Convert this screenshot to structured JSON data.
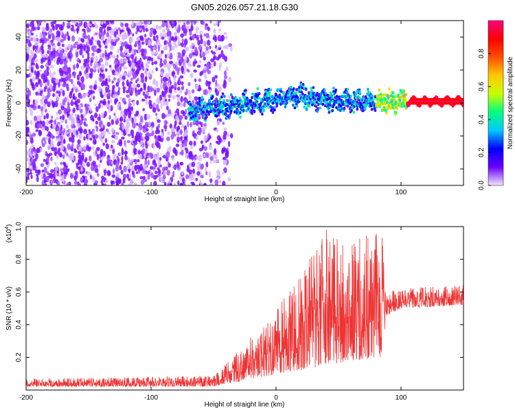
{
  "page_title": "GN05.2026.057.21.18.G30",
  "chart_data": [
    {
      "type": "heatmap",
      "title": "GN05.2026.057.21.18.G30",
      "xlabel": "Height of straight line (km)",
      "ylabel": "Frequency (Hz)",
      "xlim": [
        -200,
        150
      ],
      "ylim": [
        -50,
        50
      ],
      "xticks": [
        -200,
        -100,
        0,
        100
      ],
      "yticks": [
        -40,
        -20,
        0,
        20,
        40
      ],
      "colorbar": {
        "label": "Normalized spectral amplitude",
        "range": [
          0.0,
          1.0
        ],
        "ticks": [
          0.0,
          0.2,
          0.4,
          0.6,
          0.8
        ],
        "tick_labels": [
          "0.0",
          "0.2",
          "0.4",
          "0.6",
          "0.8"
        ],
        "colors": [
          "#f2e6ff",
          "#6a00ff",
          "#0000ff",
          "#00c8ff",
          "#00ff7f",
          "#c8ff00",
          "#ffc800",
          "#ff5000",
          "#ff0000",
          "#ff0080"
        ]
      },
      "features": {
        "noise_region_km": [
          -200,
          -45
        ],
        "signal_track_km": [
          -70,
          150
        ],
        "signal_track_center_hz": [
          -5,
          -2,
          0,
          5,
          2,
          1,
          1,
          1
        ],
        "signal_track_points_km": [
          -70,
          -40,
          -20,
          20,
          35,
          60,
          100,
          150
        ],
        "peak_amplitude": 1.0
      }
    },
    {
      "type": "line",
      "xlabel": "Height of straight line (km)",
      "ylabel": "SNR (10 * v/v)",
      "y_scale_label": "(x10",
      "y_scale_exponent": "4",
      "y_scale_suffix": ")",
      "xlim": [
        -200,
        150
      ],
      "ylim": [
        0,
        1.0
      ],
      "xticks": [
        -200,
        -100,
        0,
        100
      ],
      "yticks": [
        0.2,
        0.4,
        0.6,
        0.8,
        1.0
      ],
      "ytick_labels": [
        "0.2",
        "0.4",
        "0.6",
        "0.8",
        "1.0"
      ],
      "series": [
        {
          "name": "SNR",
          "color": "#ee3333",
          "envelope_x": [
            -200,
            -100,
            -50,
            -45,
            -30,
            -10,
            0,
            20,
            40,
            60,
            85,
            88,
            100,
            150
          ],
          "envelope_low": [
            0.02,
            0.02,
            0.02,
            0.03,
            0.05,
            0.08,
            0.1,
            0.12,
            0.15,
            0.18,
            0.2,
            0.45,
            0.5,
            0.52
          ],
          "envelope_high": [
            0.07,
            0.08,
            0.09,
            0.12,
            0.25,
            0.4,
            0.5,
            0.7,
            1.0,
            0.9,
            1.0,
            0.6,
            0.62,
            0.65
          ]
        }
      ]
    }
  ]
}
